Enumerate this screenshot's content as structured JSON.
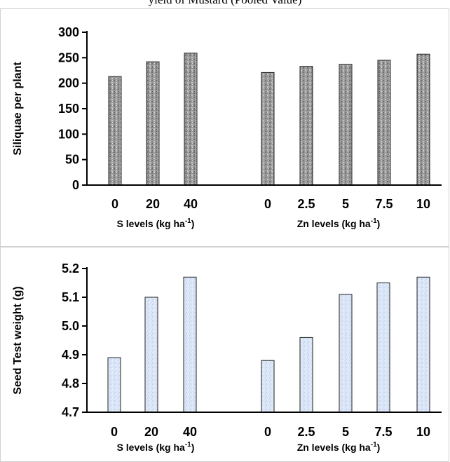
{
  "caption": "yield of Mustard (Pooled Value)",
  "colors": {
    "top_bar": "#9a9a9a",
    "bottom_bar": "#dbe6f7",
    "axis": "#000000"
  },
  "chart_data": [
    {
      "type": "bar",
      "ylabel": "Siliquae per plant",
      "ylim": [
        0,
        300
      ],
      "yticks": [
        "0",
        "50",
        "100",
        "150",
        "200",
        "250",
        "300"
      ],
      "groups": [
        {
          "xlabel": "S levels (kg ha",
          "xlabel_sup": "-1",
          "xlabel_end": ")",
          "categories": [
            "0",
            "20",
            "40"
          ],
          "values": [
            213,
            242,
            259
          ]
        },
        {
          "xlabel": "Zn levels (kg ha",
          "xlabel_sup": "-1",
          "xlabel_end": ")",
          "categories": [
            "0",
            "2.5",
            "5",
            "7.5",
            "10"
          ],
          "values": [
            221,
            233,
            237,
            245,
            257
          ]
        }
      ]
    },
    {
      "type": "bar",
      "ylabel": "Seed Test weight (g)",
      "ylim": [
        4.7,
        5.2
      ],
      "yticks": [
        "4.7",
        "4.8",
        "4.9",
        "5.0",
        "5.1",
        "5.2"
      ],
      "groups": [
        {
          "xlabel": "S levels (kg ha",
          "xlabel_sup": "-1",
          "xlabel_end": ")",
          "categories": [
            "0",
            "20",
            "40"
          ],
          "values": [
            4.89,
            5.1,
            5.17
          ]
        },
        {
          "xlabel": "Zn levels (kg ha",
          "xlabel_sup": "-1",
          "xlabel_end": ")",
          "categories": [
            "0",
            "2.5",
            "5",
            "7.5",
            "10"
          ],
          "values": [
            4.88,
            4.96,
            5.11,
            5.15,
            5.17
          ]
        }
      ]
    }
  ]
}
